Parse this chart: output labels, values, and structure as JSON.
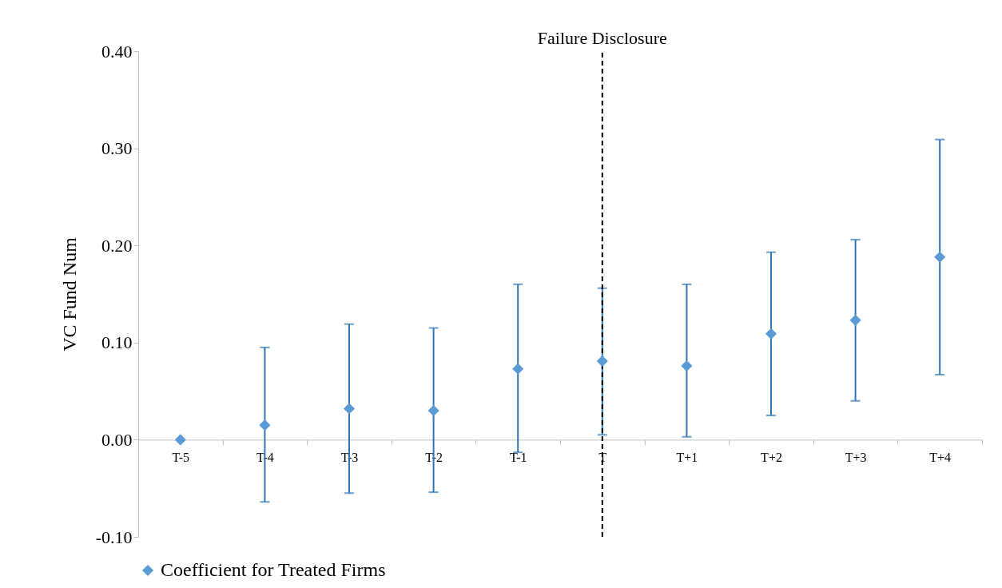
{
  "chart_data": {
    "type": "scatter",
    "ylabel": "VC Fund Num",
    "categories": [
      "T-5",
      "T-4",
      "T-3",
      "T-2",
      "T-1",
      "T",
      "T+1",
      "T+2",
      "T+3",
      "T+4"
    ],
    "series": [
      {
        "name": "Coefficient for Treated Firms",
        "color": "#5b9bd5",
        "values": [
          0,
          0.015,
          0.032,
          0.03,
          0.073,
          0.081,
          0.076,
          0.109,
          0.123,
          0.188
        ],
        "errors": [
          null,
          [
            -0.064,
            0.095
          ],
          [
            -0.055,
            0.119
          ],
          [
            -0.054,
            0.115
          ],
          [
            -0.013,
            0.16
          ],
          [
            0.005,
            0.156
          ],
          [
            0.003,
            0.16
          ],
          [
            0.025,
            0.193
          ],
          [
            0.04,
            0.206
          ],
          [
            0.067,
            0.309
          ]
        ]
      }
    ],
    "ylim": [
      -0.1,
      0.4
    ],
    "yticks": [
      {
        "value": -0.1,
        "label": "-0.10"
      },
      {
        "value": 0,
        "label": "0.00"
      },
      {
        "value": 0.1,
        "label": "0.10"
      },
      {
        "value": 0.2,
        "label": "0.20"
      },
      {
        "value": 0.3,
        "label": "0.30"
      },
      {
        "value": 0.4,
        "label": "0.40"
      }
    ],
    "ref_lines": [
      {
        "axis": "x",
        "value": "T",
        "label": "Failure Disclosure",
        "color": "#000000",
        "line_style": "dashed"
      }
    ],
    "marker": "diamond",
    "legend": "bottom",
    "grid": false
  }
}
